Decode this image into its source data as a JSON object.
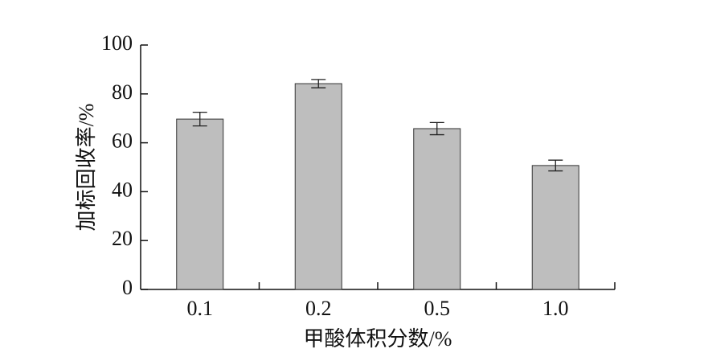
{
  "chart_data": {
    "type": "bar",
    "xlabel": "甲酸体积分数/%",
    "ylabel": "加标回收率/%",
    "categories": [
      "0.1",
      "0.2",
      "0.5",
      "1.0"
    ],
    "values": [
      69.7,
      84.2,
      65.8,
      50.7
    ],
    "errors": [
      2.8,
      1.7,
      2.5,
      2.2
    ],
    "color": "#bebebe",
    "ylim": [
      0,
      100
    ],
    "yticks": [
      0,
      20,
      40,
      60,
      80,
      100
    ]
  }
}
